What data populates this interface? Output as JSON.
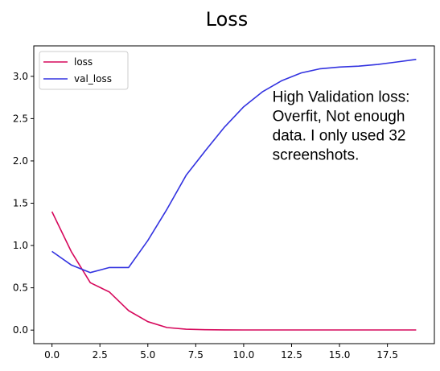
{
  "chart_data": {
    "type": "line",
    "title": "Loss",
    "xlabel": "",
    "ylabel": "",
    "xlim": [
      -0.95,
      19.95
    ],
    "ylim": [
      -0.16,
      3.36
    ],
    "xticks": [
      0,
      2.5,
      5,
      7.5,
      10,
      12.5,
      15,
      17.5
    ],
    "xtick_labels": [
      "0.0",
      "2.5",
      "5.0",
      "7.5",
      "10.0",
      "12.5",
      "15.0",
      "17.5"
    ],
    "yticks": [
      0,
      0.5,
      1,
      1.5,
      2,
      2.5,
      3
    ],
    "ytick_labels": [
      "0.0",
      "0.5",
      "1.0",
      "1.5",
      "2.0",
      "2.5",
      "3.0"
    ],
    "grid": false,
    "legend_position": "top-left",
    "x": [
      0,
      1,
      2,
      3,
      4,
      5,
      6,
      7,
      8,
      9,
      10,
      11,
      12,
      13,
      14,
      15,
      16,
      17,
      18,
      19
    ],
    "series": [
      {
        "name": "loss",
        "color": "#d6095c",
        "values": [
          1.4,
          0.93,
          0.56,
          0.45,
          0.23,
          0.1,
          0.03,
          0.01,
          0.005,
          0.003,
          0.002,
          0.002,
          0.002,
          0.002,
          0.002,
          0.002,
          0.002,
          0.002,
          0.002,
          0.002
        ]
      },
      {
        "name": "val_loss",
        "color": "#3333e0",
        "values": [
          0.93,
          0.77,
          0.68,
          0.74,
          0.74,
          1.06,
          1.43,
          1.83,
          2.12,
          2.4,
          2.64,
          2.82,
          2.95,
          3.04,
          3.09,
          3.11,
          3.12,
          3.14,
          3.17,
          3.2
        ]
      }
    ],
    "annotation": {
      "lines": [
        "High Validation loss:",
        "Overfit, Not enough",
        "data. I only used 32",
        "screenshots."
      ],
      "x": 11.5,
      "y": 2.7
    }
  }
}
